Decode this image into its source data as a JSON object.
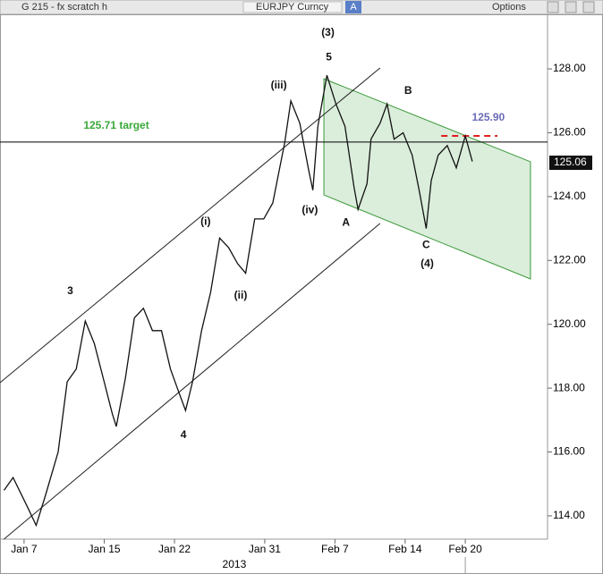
{
  "header": {
    "left": "G 215 - fx scratch h",
    "center": "EURJPY Curncy",
    "badge": "A",
    "options": "Options"
  },
  "chart_data": {
    "type": "line",
    "color": "#111111",
    "x": [
      5.0,
      5.9,
      7.3,
      8.2,
      9.1,
      10.4,
      11.3,
      12.2,
      13.1,
      14.0,
      14.9,
      15.8,
      16.2,
      17.1,
      18.0,
      18.9,
      19.8,
      20.7,
      21.6,
      22.4,
      23.1,
      23.8,
      24.7,
      25.6,
      26.5,
      27.4,
      28.3,
      29.1,
      30.0,
      30.9,
      31.8,
      33.0,
      33.6,
      34.5,
      35.4,
      35.8,
      36.3,
      37.2,
      38.1,
      39.0,
      39.9,
      40.3,
      41.2,
      41.6,
      42.5,
      43.2,
      43.9,
      44.8,
      45.7,
      46.4,
      47.1,
      47.6,
      48.3,
      49.2,
      50.1,
      51.0,
      51.7
    ],
    "values": [
      114.8,
      115.2,
      114.3,
      113.7,
      114.6,
      116.0,
      118.2,
      118.6,
      120.1,
      119.4,
      118.3,
      117.2,
      116.8,
      118.3,
      120.2,
      120.5,
      119.8,
      119.8,
      118.6,
      117.9,
      117.3,
      118.2,
      119.8,
      121.0,
      122.7,
      122.4,
      121.9,
      121.6,
      123.3,
      123.3,
      123.8,
      125.7,
      127.0,
      126.3,
      124.8,
      124.2,
      126.2,
      127.8,
      126.9,
      126.2,
      124.3,
      123.6,
      124.4,
      125.8,
      126.3,
      126.9,
      125.8,
      126.0,
      125.3,
      124.2,
      123.0,
      124.5,
      125.3,
      125.6,
      124.9,
      125.9,
      125.1
    ],
    "xlim": [
      4.6,
      59.2
    ],
    "ylim": [
      113.27,
      129.71
    ],
    "xticks": [
      {
        "value": 7,
        "label": "Jan 7"
      },
      {
        "value": 15,
        "label": "Jan 15"
      },
      {
        "value": 22,
        "label": "Jan 22"
      },
      {
        "value": 31,
        "label": "Jan 31"
      },
      {
        "value": 38,
        "label": "Feb 7"
      },
      {
        "value": 45,
        "label": "Feb 14"
      },
      {
        "value": 51,
        "label": "Feb 20"
      }
    ],
    "x_sublabel": "2013",
    "yticks": [
      {
        "value": 114,
        "label": "114.00"
      },
      {
        "value": 116,
        "label": "116.00"
      },
      {
        "value": 118,
        "label": "118.00"
      },
      {
        "value": 120,
        "label": "120.00"
      },
      {
        "value": 122,
        "label": "122.00"
      },
      {
        "value": 124,
        "label": "124.00"
      },
      {
        "value": 126,
        "label": "126.00"
      },
      {
        "value": 128,
        "label": "128.00"
      }
    ],
    "lines": [
      {
        "x": [
          4.6,
          42.5
        ],
        "y": [
          118.17,
          128.03
        ],
        "color": "#222222"
      },
      {
        "x": [
          5.0,
          42.5
        ],
        "y": [
          113.27,
          123.16
        ],
        "color": "#222222"
      }
    ],
    "zone": {
      "x": [
        36.9,
        57.5,
        57.5,
        36.9
      ],
      "y": [
        127.69,
        125.09,
        121.42,
        124.05
      ],
      "color": "#3a9a3a"
    },
    "hline": {
      "value": 125.71,
      "color": "#000000"
    },
    "target": {
      "x": [
        48.6,
        54.2
      ],
      "value": 125.9,
      "color": "#e02020"
    },
    "last_value": {
      "value": 125.06,
      "label": "125.06"
    },
    "annotations": [
      {
        "text": "(3)",
        "x": 37.3,
        "y": 129.12,
        "color": "#111111"
      },
      {
        "text": "5",
        "x": 37.4,
        "y": 128.36,
        "color": "#111111"
      },
      {
        "text": "(iii)",
        "x": 32.4,
        "y": 127.47,
        "color": "#111111"
      },
      {
        "text": "B",
        "x": 45.3,
        "y": 127.3,
        "color": "#111111"
      },
      {
        "text": "125.90",
        "x": 53.3,
        "y": 126.46,
        "color": "#6a6ab8"
      },
      {
        "text": "125.71 target",
        "x": 16.2,
        "y": 126.21,
        "color": "#3aa83a"
      },
      {
        "text": "(i)",
        "x": 25.1,
        "y": 123.21,
        "color": "#111111"
      },
      {
        "text": "(iv)",
        "x": 35.5,
        "y": 123.57,
        "color": "#111111"
      },
      {
        "text": "A",
        "x": 39.1,
        "y": 123.18,
        "color": "#111111"
      },
      {
        "text": "C",
        "x": 47.1,
        "y": 122.48,
        "color": "#111111"
      },
      {
        "text": "(4)",
        "x": 47.2,
        "y": 121.89,
        "color": "#111111"
      },
      {
        "text": "3",
        "x": 11.6,
        "y": 121.03,
        "color": "#111111"
      },
      {
        "text": "(ii)",
        "x": 28.6,
        "y": 120.89,
        "color": "#111111"
      },
      {
        "text": "4",
        "x": 22.9,
        "y": 116.52,
        "color": "#111111"
      }
    ]
  }
}
